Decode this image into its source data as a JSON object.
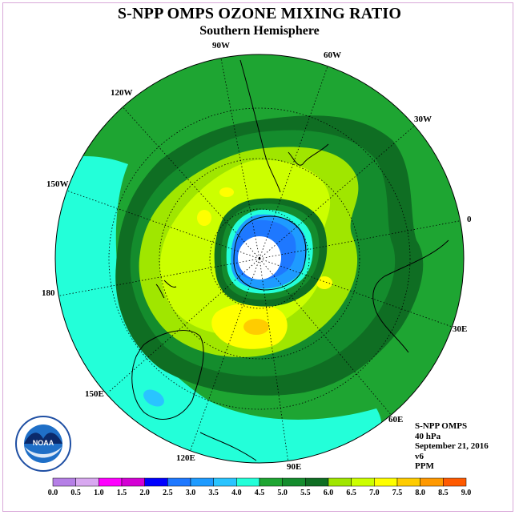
{
  "title": "S-NPP OMPS OZONE MIXING RATIO",
  "subtitle": "Southern Hemisphere",
  "longitude_labels": {
    "lon_90w": "90W",
    "lon_60w": "60W",
    "lon_120w": "120W",
    "lon_30w": "30W",
    "lon_150w": "150W",
    "lon_0": "0",
    "lon_180": "180",
    "lon_30e": "30E",
    "lon_150e": "150E",
    "lon_60e": "60E",
    "lon_120e": "120E",
    "lon_90e": "90E"
  },
  "info": {
    "instrument": "S-NPP OMPS",
    "level": "40 hPa",
    "date": "September 21, 2016",
    "version": "v6",
    "units": "PPM"
  },
  "logo_text": "NOAA",
  "colorbar": {
    "ticks": [
      "0.0",
      "0.5",
      "1.0",
      "1.5",
      "2.0",
      "2.5",
      "3.0",
      "3.5",
      "4.0",
      "4.5",
      "5.0",
      "5.5",
      "6.0",
      "6.5",
      "7.0",
      "7.5",
      "8.0",
      "8.5",
      "9.0"
    ],
    "colors": [
      "#b57fe6",
      "#d8a8f0",
      "#ff00ff",
      "#d400d4",
      "#0000ff",
      "#1e78ff",
      "#1e9bff",
      "#29c4ff",
      "#23ffd9",
      "#1ea532",
      "#148c2d",
      "#0f6e23",
      "#a0e600",
      "#ccff00",
      "#ffff00",
      "#ffcc00",
      "#ff9900",
      "#ff5a00",
      "#ff0000",
      "#8b5a3c"
    ]
  }
}
